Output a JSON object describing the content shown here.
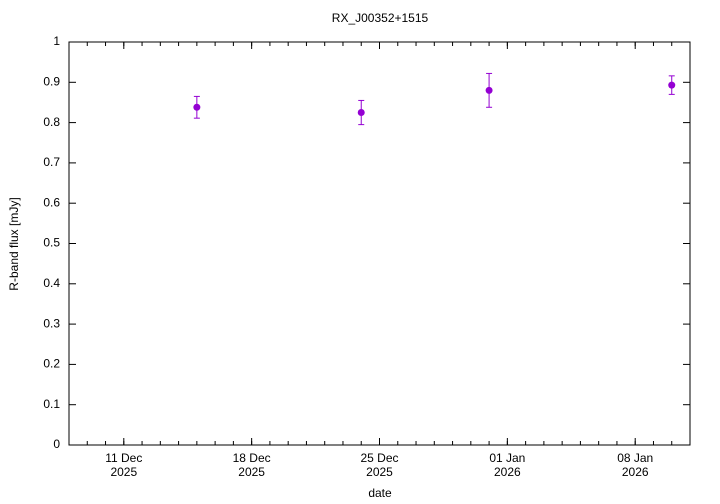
{
  "chart_data": {
    "type": "errorbar",
    "title": "RX_J00352+1515",
    "xlabel": "date",
    "ylabel": "R-band flux [mJy]",
    "x": [
      "2025-12-15",
      "2025-12-24",
      "2025-12-31",
      "2026-01-10"
    ],
    "series": [
      {
        "name": "R-band flux",
        "color": "#9400d3",
        "values": [
          0.838,
          0.825,
          0.88,
          0.893
        ],
        "errors": [
          0.027,
          0.03,
          0.042,
          0.023
        ]
      }
    ],
    "xlim": [
      "2025-12-08",
      "2026-01-11"
    ],
    "xticks": [
      {
        "value": "2025-12-11",
        "label": [
          "11 Dec",
          "2025"
        ]
      },
      {
        "value": "2025-12-18",
        "label": [
          "18 Dec",
          "2025"
        ]
      },
      {
        "value": "2025-12-25",
        "label": [
          "25 Dec",
          "2025"
        ]
      },
      {
        "value": "2026-01-01",
        "label": [
          "01 Jan",
          "2026"
        ]
      },
      {
        "value": "2026-01-08",
        "label": [
          "08 Jan",
          "2026"
        ]
      }
    ],
    "ylim": [
      0,
      1
    ],
    "yticks": [
      0,
      0.1,
      0.2,
      0.3,
      0.4,
      0.5,
      0.6,
      0.7,
      0.8,
      0.9,
      1
    ],
    "grid": false
  }
}
